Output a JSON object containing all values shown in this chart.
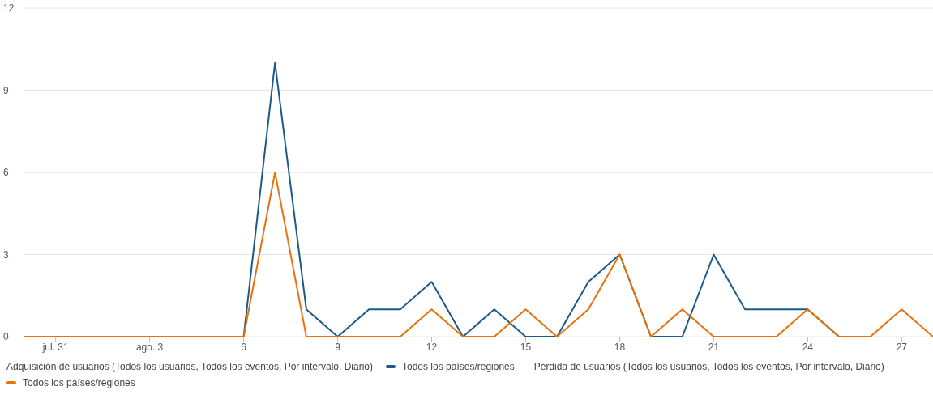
{
  "chart_data": {
    "type": "line",
    "x": [
      "--07-30",
      "--07-31",
      "--08-01",
      "--08-02",
      "--08-03",
      "--08-04",
      "--08-05",
      "--08-06",
      "--08-07",
      "--08-08",
      "--08-09",
      "--08-10",
      "--08-11",
      "--08-12",
      "--08-13",
      "--08-14",
      "--08-15",
      "--08-16",
      "--08-17",
      "--08-18",
      "--08-19",
      "--08-20",
      "--08-21",
      "--08-22",
      "--08-23",
      "--08-24",
      "--08-25",
      "--08-26",
      "--08-27",
      "--08-28"
    ],
    "series": [
      {
        "name": "Todos los países/regiones",
        "color": "#1b5a8a",
        "values": [
          null,
          null,
          null,
          null,
          null,
          null,
          0,
          0,
          10,
          1,
          0,
          1,
          1,
          2,
          0,
          1,
          0,
          0,
          2,
          3,
          0,
          0,
          3,
          1,
          1,
          1,
          0,
          0,
          null,
          null
        ]
      },
      {
        "name": "Todos los países/regiones",
        "color": "#e8710a",
        "values": [
          0,
          0,
          0,
          0,
          0,
          0,
          0,
          0,
          6,
          0,
          0,
          0,
          0,
          1,
          0,
          0,
          1,
          0,
          1,
          3,
          0,
          1,
          0,
          0,
          0,
          1,
          0,
          0,
          1,
          0
        ]
      }
    ],
    "xlim": [
      "--07-30",
      "--08-28"
    ],
    "xticks": [
      {
        "value": "--07-31",
        "label": "jul. 31"
      },
      {
        "value": "--08-03",
        "label": "ago. 3"
      },
      {
        "value": "--08-06",
        "label": "6"
      },
      {
        "value": "--08-09",
        "label": "9"
      },
      {
        "value": "--08-12",
        "label": "12"
      },
      {
        "value": "--08-15",
        "label": "15"
      },
      {
        "value": "--08-18",
        "label": "18"
      },
      {
        "value": "--08-21",
        "label": "21"
      },
      {
        "value": "--08-24",
        "label": "24"
      },
      {
        "value": "--08-27",
        "label": "27"
      }
    ],
    "ylim": [
      0,
      12
    ],
    "yticks": [
      0,
      3,
      6,
      9,
      12
    ],
    "grid": "y",
    "annotations": [
      "Adquisición de usuarios (Todos los usuarios, Todos los eventos, Por intervalo, Diario)",
      "Pérdida de usuarios (Todos los usuarios, Todos los eventos, Por intervalo, Diario)"
    ],
    "legend": "bottom",
    "marker": "none",
    "line_style": "solid"
  }
}
